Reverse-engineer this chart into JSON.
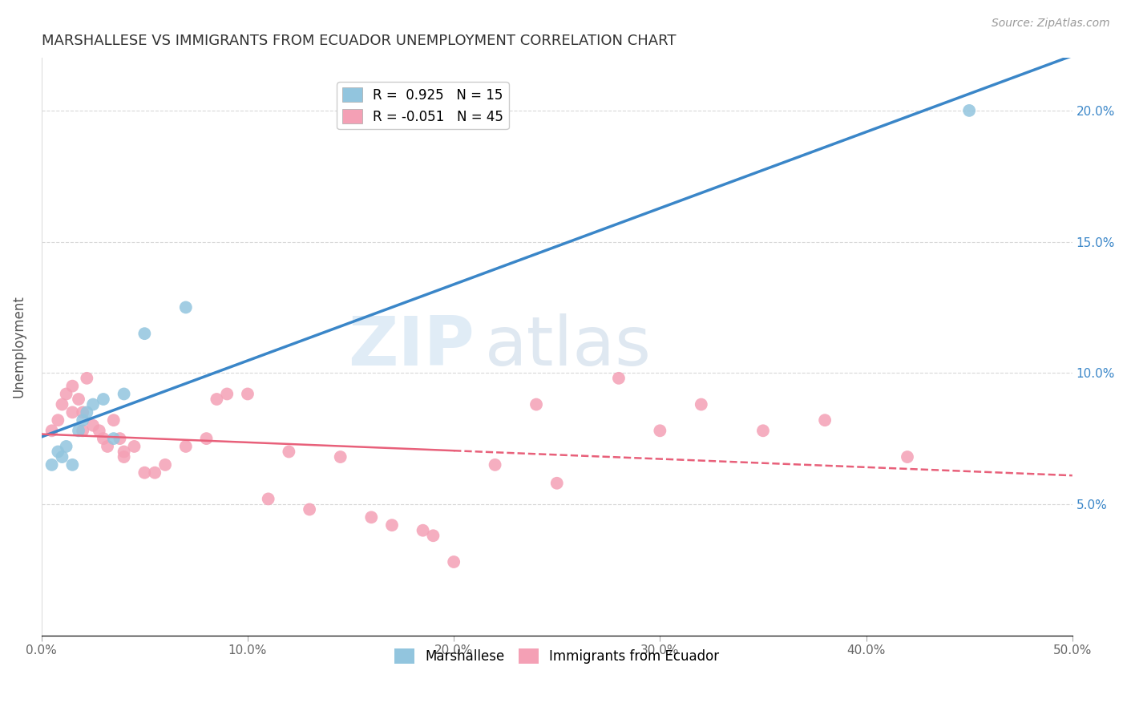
{
  "title": "MARSHALLESE VS IMMIGRANTS FROM ECUADOR UNEMPLOYMENT CORRELATION CHART",
  "source": "Source: ZipAtlas.com",
  "ylabel_label": "Unemployment",
  "xlim": [
    0,
    50
  ],
  "ylim": [
    0,
    22
  ],
  "xlabel_ticks": [
    "0.0%",
    "10.0%",
    "20.0%",
    "30.0%",
    "40.0%",
    "50.0%"
  ],
  "xlabel_vals": [
    0,
    10,
    20,
    30,
    40,
    50
  ],
  "ylabel_ticks": [
    "5.0%",
    "10.0%",
    "15.0%",
    "20.0%"
  ],
  "ylabel_vals": [
    5,
    10,
    15,
    20
  ],
  "legend_entry1": "R =  0.925   N = 15",
  "legend_entry2": "R = -0.051   N = 45",
  "legend_label1": "Marshallese",
  "legend_label2": "Immigrants from Ecuador",
  "blue_color": "#92c5de",
  "pink_color": "#f4a0b5",
  "blue_line_color": "#3a86c8",
  "pink_line_color": "#e8607a",
  "watermark_zip": "ZIP",
  "watermark_atlas": "atlas",
  "blue_x": [
    0.5,
    0.8,
    1.0,
    1.2,
    1.5,
    1.8,
    2.0,
    2.2,
    2.5,
    3.0,
    3.5,
    4.0,
    5.0,
    7.0,
    45.0
  ],
  "blue_y": [
    6.5,
    7.0,
    6.8,
    7.2,
    6.5,
    7.8,
    8.2,
    8.5,
    8.8,
    9.0,
    7.5,
    9.2,
    11.5,
    12.5,
    20.0
  ],
  "pink_x": [
    0.5,
    0.8,
    1.0,
    1.2,
    1.5,
    1.5,
    1.8,
    2.0,
    2.0,
    2.2,
    2.5,
    2.8,
    3.0,
    3.2,
    3.5,
    3.8,
    4.0,
    4.0,
    4.5,
    5.0,
    5.5,
    6.0,
    7.0,
    8.0,
    8.5,
    9.0,
    10.0,
    11.0,
    12.0,
    13.0,
    14.5,
    16.0,
    17.0,
    18.5,
    19.0,
    20.0,
    22.0,
    24.0,
    25.0,
    28.0,
    30.0,
    32.0,
    35.0,
    38.0,
    42.0
  ],
  "pink_y": [
    7.8,
    8.2,
    8.8,
    9.2,
    8.5,
    9.5,
    9.0,
    7.8,
    8.5,
    9.8,
    8.0,
    7.8,
    7.5,
    7.2,
    8.2,
    7.5,
    7.0,
    6.8,
    7.2,
    6.2,
    6.2,
    6.5,
    7.2,
    7.5,
    9.0,
    9.2,
    9.2,
    5.2,
    7.0,
    4.8,
    6.8,
    4.5,
    4.2,
    4.0,
    3.8,
    2.8,
    6.5,
    8.8,
    5.8,
    9.8,
    7.8,
    8.8,
    7.8,
    8.2,
    6.8
  ]
}
